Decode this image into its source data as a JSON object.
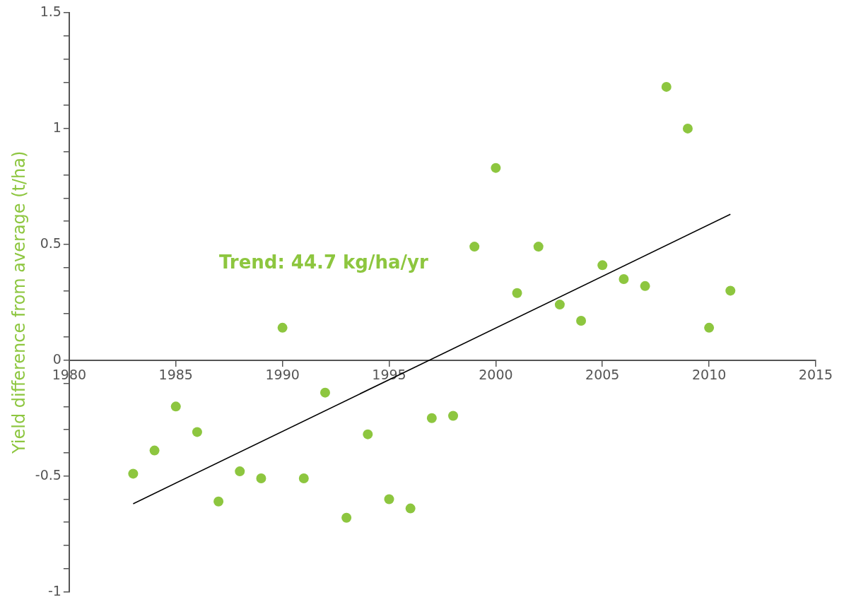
{
  "chart_data": {
    "type": "scatter",
    "ylabel": "Yield difference from average (t/ha)",
    "xlim": [
      1980,
      2015
    ],
    "xticks": [
      1980,
      1985,
      1990,
      1995,
      2000,
      2005,
      2010,
      2015
    ],
    "ylim": [
      -1,
      1.5
    ],
    "yticks": [
      -1,
      {
        "value": -0.9,
        "label": null
      },
      {
        "value": -0.8,
        "label": null
      },
      {
        "value": -0.7,
        "label": null
      },
      {
        "value": -0.6,
        "label": null
      },
      -0.5,
      {
        "value": -0.4,
        "label": null
      },
      {
        "value": -0.3,
        "label": null
      },
      {
        "value": -0.2,
        "label": null
      },
      {
        "value": -0.1,
        "label": null
      },
      0,
      {
        "value": 0.1,
        "label": null
      },
      {
        "value": 0.2,
        "label": null
      },
      {
        "value": 0.3,
        "label": null
      },
      {
        "value": 0.4,
        "label": null
      },
      0.5,
      {
        "value": 0.6,
        "label": null
      },
      {
        "value": 0.7,
        "label": null
      },
      {
        "value": 0.8,
        "label": null
      },
      {
        "value": 0.9,
        "label": null
      },
      1,
      {
        "value": 1.1,
        "label": null
      },
      {
        "value": 1.2,
        "label": null
      },
      {
        "value": 1.3,
        "label": null
      },
      {
        "value": 1.4,
        "label": null
      },
      1.5
    ],
    "grid": false,
    "legend": false,
    "series": [
      {
        "type": "scatter",
        "marker": "circle",
        "color": "#8dc63f",
        "x": [
          1983,
          1984,
          1985,
          1986,
          1987,
          1988,
          1989,
          1990,
          1991,
          1992,
          1993,
          1994,
          1995,
          1996,
          1997,
          1998,
          1999,
          2000,
          2001,
          2002,
          2003,
          2004,
          2005,
          2006,
          2007,
          2008,
          2009,
          2010,
          2011
        ],
        "values": [
          -0.49,
          -0.39,
          -0.2,
          -0.31,
          -0.61,
          -0.48,
          -0.51,
          0.14,
          -0.51,
          -0.14,
          -0.68,
          -0.32,
          -0.6,
          -0.64,
          -0.25,
          -0.24,
          0.49,
          0.83,
          0.29,
          0.49,
          0.24,
          0.17,
          0.41,
          0.35,
          0.32,
          1.18,
          1.0,
          0.14,
          0.3
        ]
      },
      {
        "type": "line",
        "color": "#000000",
        "x": [
          1983,
          2011
        ],
        "values": [
          -0.62,
          0.63
        ]
      }
    ],
    "annotations": [
      "Trend: 44.7 kg/ha/yr"
    ]
  }
}
